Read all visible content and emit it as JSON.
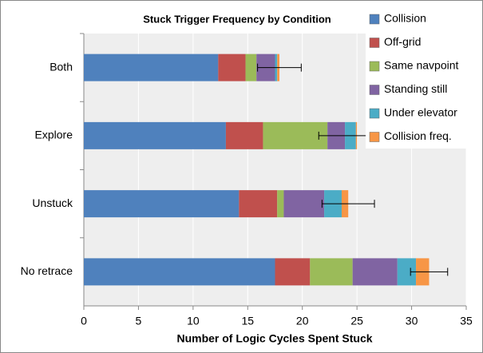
{
  "chart_data": {
    "type": "stacked_bar_horizontal",
    "title": "Stuck Trigger Frequency by Condition",
    "xlabel": "Number of Logic Cycles Spent Stuck",
    "categories": [
      "Both",
      "Explore",
      "Unstuck",
      "No retrace"
    ],
    "series": [
      {
        "name": "Collision",
        "color": "#4f81bd",
        "values": [
          12.3,
          13.0,
          14.2,
          17.5
        ]
      },
      {
        "name": "Off-grid",
        "color": "#c0504d",
        "values": [
          2.5,
          3.4,
          3.5,
          3.2
        ]
      },
      {
        "name": "Same navpoint",
        "color": "#9bbb59",
        "values": [
          1.0,
          5.9,
          0.6,
          3.9
        ]
      },
      {
        "name": "Standing still",
        "color": "#8064a2",
        "values": [
          1.7,
          1.6,
          3.7,
          4.1
        ]
      },
      {
        "name": "Under elevator",
        "color": "#4bacc6",
        "values": [
          0.2,
          1.0,
          1.6,
          1.7
        ]
      },
      {
        "name": "Collision freq.",
        "color": "#f79646",
        "values": [
          0.2,
          0.1,
          0.6,
          1.2
        ]
      }
    ],
    "errors": [
      2.0,
      3.5,
      2.4,
      1.7
    ],
    "xlim": [
      0,
      35
    ],
    "xticks": [
      0,
      5,
      10,
      15,
      20,
      25,
      30,
      35
    ],
    "grid": true,
    "legend": "upper right"
  }
}
